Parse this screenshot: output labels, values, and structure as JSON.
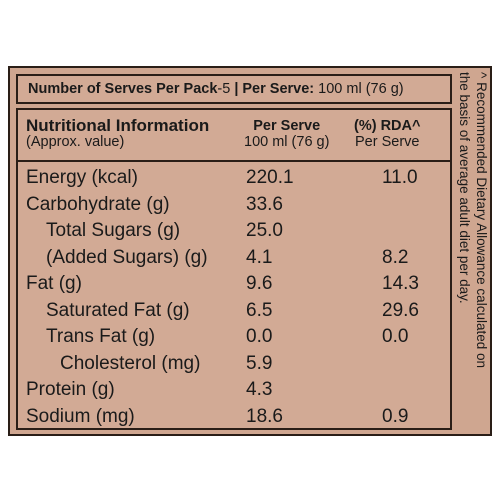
{
  "serves": {
    "count_label": "Number of Serves Per Pack",
    "count_value": "-5",
    "per_serve_label": "Per Serve:",
    "per_serve_value": "100 ml (76 g)"
  },
  "columns": {
    "nutrient_title": "Nutritional Information",
    "nutrient_sub": "(Approx. value)",
    "per_serve_title": "Per Serve",
    "per_serve_sub": "100 ml (76 g)",
    "rda_title": "(%) RDA^",
    "rda_sub": "Per Serve"
  },
  "rows": [
    {
      "name": "Energy (kcal)",
      "per_serve": "220.1",
      "rda": "11.0"
    },
    {
      "name": "Carbohydrate (g)",
      "per_serve": "33.6",
      "rda": ""
    },
    {
      "name": "Total Sugars (g)",
      "per_serve": "25.0",
      "rda": ""
    },
    {
      "name": "(Added Sugars) (g)",
      "per_serve": "4.1",
      "rda": "8.2"
    },
    {
      "name": "Fat (g)",
      "per_serve": "9.6",
      "rda": "14.3"
    },
    {
      "name": "Saturated Fat (g)",
      "per_serve": "6.5",
      "rda": "29.6"
    },
    {
      "name": "Trans Fat (g)",
      "per_serve": "0.0",
      "rda": "0.0"
    },
    {
      "name": "Cholesterol (mg)",
      "per_serve": "5.9",
      "rda": ""
    },
    {
      "name": "Protein (g)",
      "per_serve": "4.3",
      "rda": ""
    },
    {
      "name": "Sodium (mg)",
      "per_serve": "18.6",
      "rda": "0.9"
    }
  ],
  "footnote": {
    "line1": "^ Recommended Dietary Allowance calculated on",
    "line2": "the basis of average adult diet per day."
  },
  "colors": {
    "panel": "#cfa690",
    "border": "#2a1e17",
    "text": "#1a1a1a"
  }
}
